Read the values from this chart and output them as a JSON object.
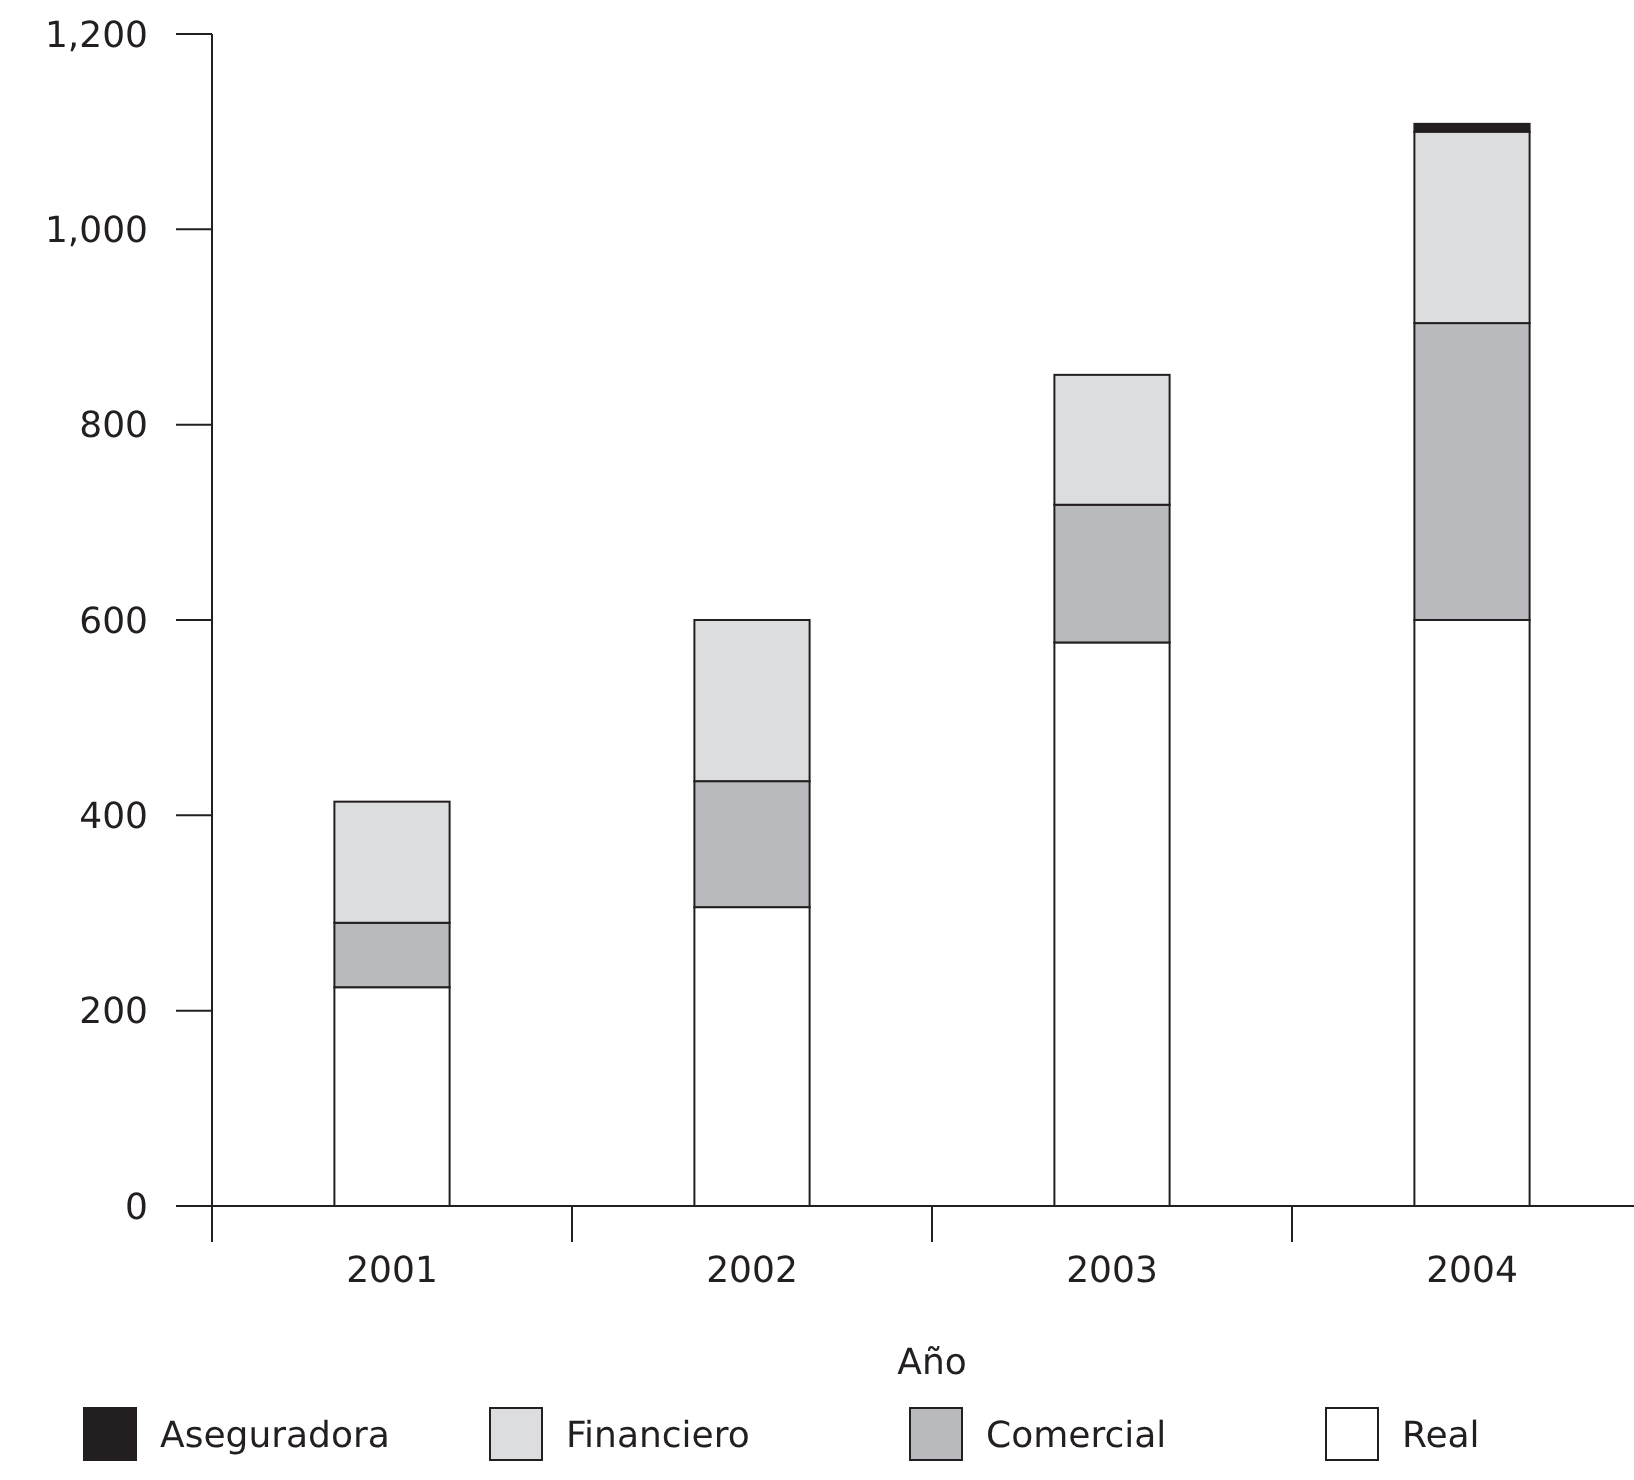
{
  "chart_data": {
    "type": "bar",
    "stacked": true,
    "xlabel": "Año",
    "categories": [
      "2001",
      "2002",
      "2003",
      "2004"
    ],
    "series": [
      {
        "name": "Real",
        "color": "#ffffff",
        "values": [
          224,
          306,
          577,
          600
        ]
      },
      {
        "name": "Comercial",
        "color": "#b9babd",
        "values": [
          66,
          129,
          141,
          304
        ]
      },
      {
        "name": "Financiero",
        "color": "#dcdddf",
        "values": [
          124,
          165,
          133,
          196
        ]
      },
      {
        "name": "Aseguradora",
        "color": "#231f20",
        "values": [
          0,
          0,
          0,
          8
        ]
      }
    ],
    "ylim": [
      0,
      1200
    ],
    "yticks": [
      0,
      200,
      400,
      600,
      800,
      {
        "value": 1000,
        "label": "1,000"
      },
      {
        "value": 1200,
        "label": "1,200"
      }
    ],
    "grid": false,
    "legend": "bottom"
  }
}
